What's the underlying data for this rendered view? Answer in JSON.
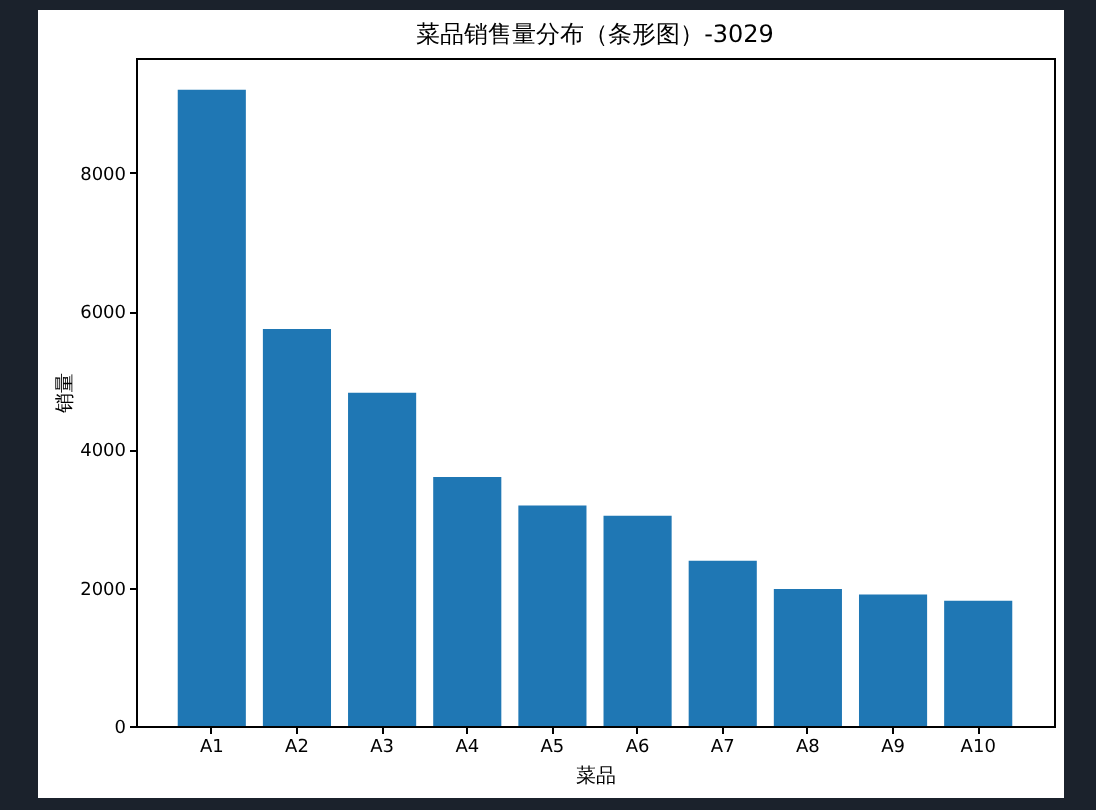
{
  "chart_data": {
    "type": "bar",
    "title": "菜品销售量分布（条形图）-3029",
    "xlabel": "菜品",
    "ylabel": "销量",
    "categories": [
      "A1",
      "A2",
      "A3",
      "A4",
      "A5",
      "A6",
      "A7",
      "A8",
      "A9",
      "A10"
    ],
    "values": [
      9200,
      5740,
      4820,
      3600,
      3190,
      3040,
      2390,
      1980,
      1900,
      1810
    ],
    "color": "#1f77b4",
    "ylim": [
      0,
      9660
    ],
    "yticks": [
      0,
      2000,
      4000,
      6000,
      8000
    ]
  }
}
